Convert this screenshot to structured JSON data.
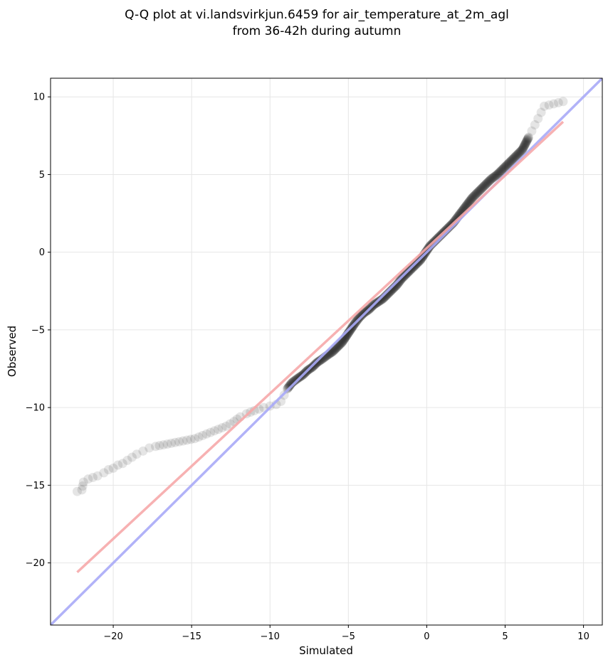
{
  "chart_data": {
    "type": "scatter",
    "title_line1": "Q-Q plot at vi.landsvirkjun.6459 for air_temperature_at_2m_agl",
    "title_line2": "from 36-42h during autumn",
    "xlabel": "Simulated",
    "ylabel": "Observed",
    "xlim": [
      -24.0,
      11.2
    ],
    "ylim": [
      -24.0,
      11.2
    ],
    "x_ticks": [
      -20,
      -15,
      -10,
      -5,
      0,
      5,
      10
    ],
    "y_ticks": [
      -20,
      -15,
      -10,
      -5,
      0,
      5,
      10
    ],
    "x_tick_labels": [
      "−20",
      "−15",
      "−10",
      "−5",
      "0",
      "5",
      "10"
    ],
    "y_tick_labels": [
      "−20",
      "−15",
      "−10",
      "−5",
      "0",
      "5",
      "10"
    ],
    "grid": true,
    "quantile_curve": [
      [
        -22.3,
        -15.4
      ],
      [
        -22.0,
        -15.3
      ],
      [
        -21.9,
        -14.8
      ],
      [
        -21.6,
        -14.6
      ],
      [
        -21.0,
        -14.4
      ],
      [
        -20.6,
        -14.2
      ],
      [
        -20.3,
        -14.0
      ],
      [
        -20.0,
        -13.9
      ],
      [
        -19.7,
        -13.7
      ],
      [
        -19.4,
        -13.6
      ],
      [
        -19.1,
        -13.4
      ],
      [
        -18.8,
        -13.2
      ],
      [
        -18.5,
        -13.0
      ],
      [
        -18.1,
        -12.8
      ],
      [
        -17.7,
        -12.6
      ],
      [
        -17.3,
        -12.5
      ],
      [
        -16.8,
        -12.4
      ],
      [
        -16.3,
        -12.3
      ],
      [
        -15.8,
        -12.2
      ],
      [
        -15.3,
        -12.1
      ],
      [
        -14.8,
        -12.0
      ],
      [
        -14.3,
        -11.8
      ],
      [
        -13.8,
        -11.6
      ],
      [
        -13.3,
        -11.4
      ],
      [
        -12.8,
        -11.2
      ],
      [
        -12.3,
        -10.9
      ],
      [
        -11.9,
        -10.6
      ],
      [
        -11.5,
        -10.4
      ],
      [
        -11.0,
        -10.2
      ],
      [
        -10.4,
        -10.0
      ],
      [
        -10.0,
        -9.9
      ],
      [
        -9.6,
        -9.8
      ],
      [
        -9.3,
        -9.6
      ],
      [
        -9.1,
        -9.2
      ],
      [
        -8.9,
        -8.8
      ],
      [
        -8.6,
        -8.4
      ],
      [
        -8.2,
        -8.1
      ],
      [
        -7.9,
        -7.9
      ],
      [
        -7.6,
        -7.6
      ],
      [
        -7.3,
        -7.4
      ],
      [
        -7.0,
        -7.1
      ],
      [
        -6.7,
        -6.9
      ],
      [
        -6.3,
        -6.6
      ],
      [
        -6.0,
        -6.4
      ],
      [
        -5.7,
        -6.1
      ],
      [
        -5.4,
        -5.8
      ],
      [
        -5.2,
        -5.5
      ],
      [
        -5.0,
        -5.2
      ],
      [
        -4.8,
        -4.9
      ],
      [
        -4.6,
        -4.6
      ],
      [
        -4.3,
        -4.2
      ],
      [
        -4.0,
        -3.9
      ],
      [
        -3.7,
        -3.7
      ],
      [
        -3.4,
        -3.4
      ],
      [
        -3.1,
        -3.2
      ],
      [
        -2.8,
        -3.0
      ],
      [
        -2.5,
        -2.7
      ],
      [
        -2.2,
        -2.4
      ],
      [
        -1.9,
        -2.1
      ],
      [
        -1.6,
        -1.7
      ],
      [
        -1.3,
        -1.4
      ],
      [
        -1.0,
        -1.1
      ],
      [
        -0.7,
        -0.8
      ],
      [
        -0.4,
        -0.5
      ],
      [
        -0.2,
        -0.2
      ],
      [
        0.0,
        0.1
      ],
      [
        0.2,
        0.4
      ],
      [
        0.5,
        0.7
      ],
      [
        0.8,
        1.0
      ],
      [
        1.1,
        1.3
      ],
      [
        1.4,
        1.6
      ],
      [
        1.7,
        1.9
      ],
      [
        2.0,
        2.3
      ],
      [
        2.3,
        2.7
      ],
      [
        2.6,
        3.1
      ],
      [
        2.9,
        3.5
      ],
      [
        3.3,
        3.9
      ],
      [
        3.7,
        4.3
      ],
      [
        4.1,
        4.7
      ],
      [
        4.5,
        5.0
      ],
      [
        4.9,
        5.4
      ],
      [
        5.3,
        5.8
      ],
      [
        5.7,
        6.2
      ],
      [
        6.1,
        6.6
      ],
      [
        6.3,
        7.0
      ],
      [
        6.5,
        7.4
      ],
      [
        6.7,
        7.8
      ],
      [
        6.9,
        8.2
      ],
      [
        7.1,
        8.6
      ],
      [
        7.3,
        9.0
      ],
      [
        7.5,
        9.4
      ],
      [
        8.7,
        9.7
      ]
    ],
    "identity_line": {
      "color": "#a9aaf7",
      "from": [
        -24.0,
        -24.0
      ],
      "to": [
        11.2,
        11.2
      ]
    },
    "fit_line": {
      "color": "#f6a9aa",
      "from": [
        -22.3,
        -20.6
      ],
      "to": [
        8.7,
        8.4
      ]
    },
    "colors": {
      "point_fill": "#000000",
      "dense_tint": "#1a1a80",
      "grid": "#e6e6e6"
    }
  }
}
